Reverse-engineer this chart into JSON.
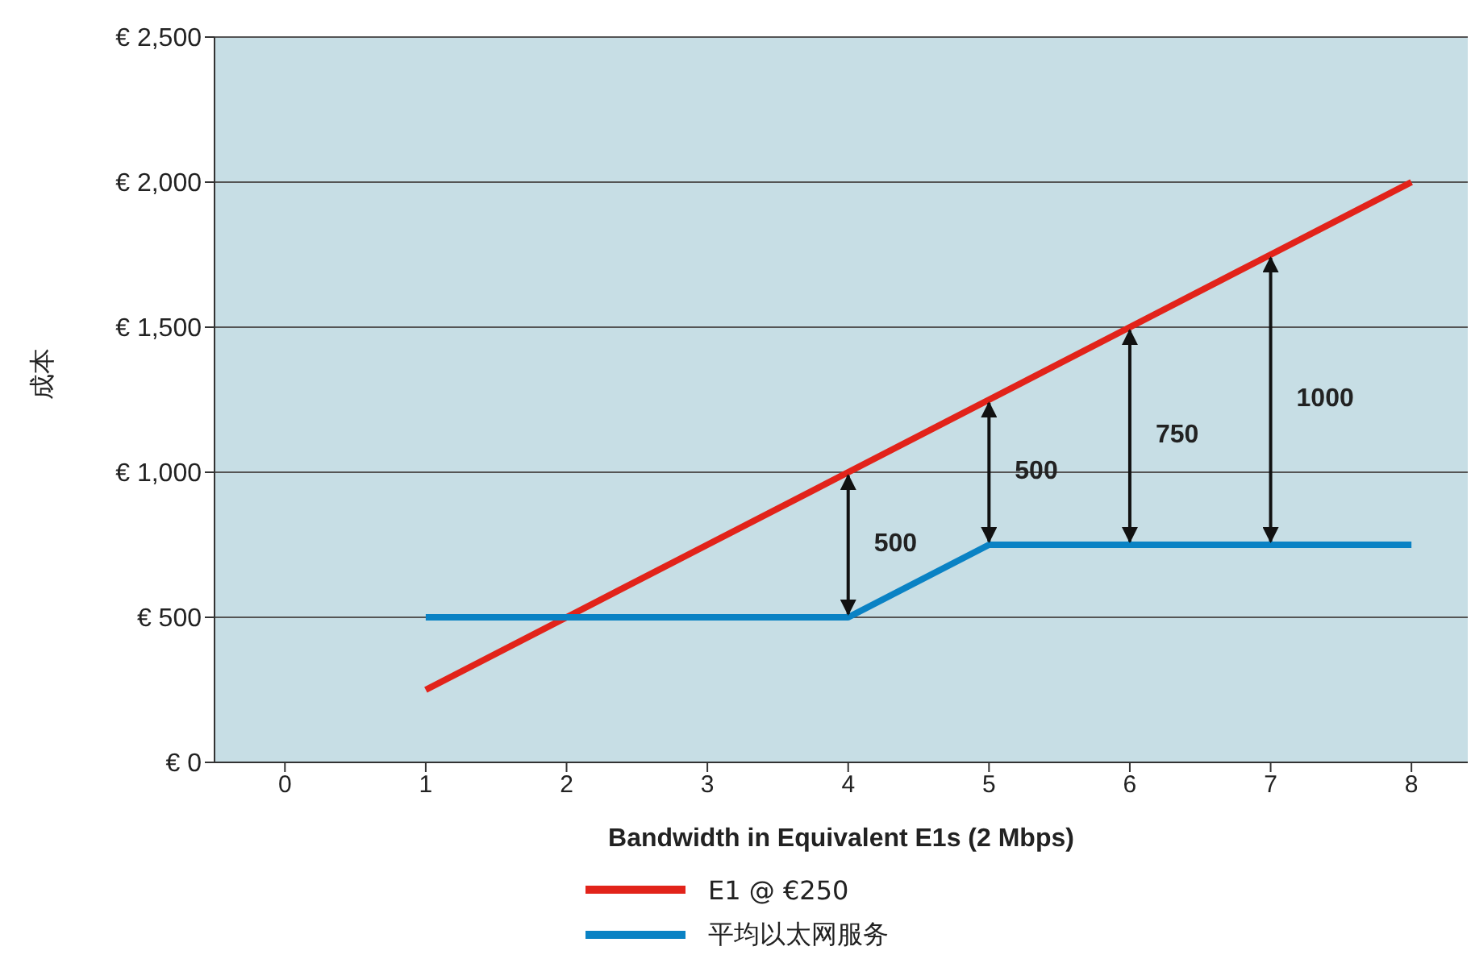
{
  "chart_data": {
    "type": "line",
    "xlabel": "Bandwidth in Equivalent E1s (2 Mbps)",
    "ylabel": "成本",
    "x": [
      1,
      2,
      3,
      4,
      5,
      6,
      7,
      8
    ],
    "series": [
      {
        "name": "E1 @ €250",
        "color": "#e2231a",
        "values": [
          250,
          500,
          750,
          1000,
          1250,
          1500,
          1750,
          2000
        ]
      },
      {
        "name": "平均以太网服务",
        "color": "#0a82c4",
        "values": [
          500,
          500,
          500,
          500,
          750,
          750,
          750,
          750
        ]
      }
    ],
    "xlim": [
      -0.5,
      8.4
    ],
    "xticks": [
      0,
      1,
      2,
      3,
      4,
      5,
      6,
      7,
      8
    ],
    "ylim": [
      0,
      2500
    ],
    "yticks": [
      {
        "value": 0,
        "label": "€ 0"
      },
      {
        "value": 500,
        "label": "€ 500"
      },
      {
        "value": 1000,
        "label": "€ 1,000"
      },
      {
        "value": 1500,
        "label": "€ 1,500"
      },
      {
        "value": 2000,
        "label": "€ 2,000"
      },
      {
        "value": 2500,
        "label": "€ 2,500"
      }
    ],
    "grid": "y",
    "legend": "bottom",
    "marker": "none",
    "line_style": "solid",
    "annotations": [
      "500",
      "500",
      "750",
      "1000"
    ]
  }
}
